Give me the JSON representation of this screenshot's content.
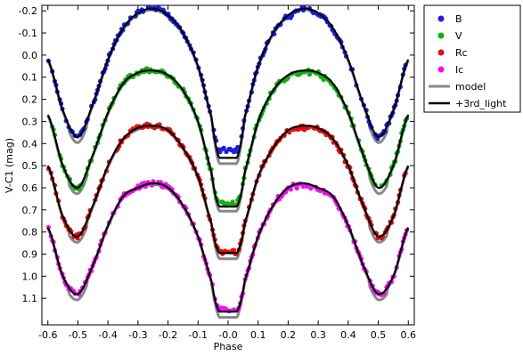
{
  "chart_data": {
    "type": "scatter",
    "title": "",
    "xlabel": "Phase",
    "ylabel": "V-C1 (mag)",
    "xlim": [
      -0.62,
      0.62
    ],
    "ylim": [
      1.22,
      -0.225
    ],
    "y_inverted": true,
    "grid": false,
    "legend_position": "outside-top-right",
    "x_ticks": [
      -0.6,
      -0.5,
      -0.4,
      -0.3,
      -0.2,
      -0.1,
      0.0,
      0.1,
      0.2,
      0.3,
      0.4,
      0.5,
      0.6
    ],
    "x_tick_labels": [
      "-0.6",
      "-0.5",
      "-0.4",
      "-0.3",
      "-0.2",
      "-0.1",
      "-0.0",
      "0.1",
      "0.2",
      "0.3",
      "0.4",
      "0.5",
      "0.6"
    ],
    "y_ticks": [
      -0.2,
      -0.1,
      0.0,
      0.1,
      0.2,
      0.3,
      0.4,
      0.5,
      0.6,
      0.7,
      0.8,
      0.9,
      1.0,
      1.1
    ],
    "y_tick_labels": [
      "-0.2",
      "-0.1",
      "0.0",
      "0.1",
      "0.2",
      "0.3",
      "0.4",
      "0.5",
      "0.6",
      "0.7",
      "0.8",
      "0.9",
      "1.0",
      "1.1"
    ],
    "light_curve_shape": {
      "phases": [
        -0.6,
        -0.55,
        -0.5,
        -0.45,
        -0.4,
        -0.35,
        -0.3,
        -0.25,
        -0.2,
        -0.15,
        -0.1,
        -0.05,
        0.0,
        0.05,
        0.1,
        0.15,
        0.2,
        0.25,
        0.3,
        0.35,
        0.4,
        0.45,
        0.5,
        0.55,
        0.6
      ],
      "B": [
        0.02,
        0.25,
        0.37,
        0.22,
        0.02,
        -0.12,
        -0.19,
        -0.21,
        -0.18,
        -0.1,
        0.05,
        0.3,
        0.43,
        0.3,
        0.05,
        -0.1,
        -0.18,
        -0.21,
        -0.19,
        -0.12,
        0.02,
        0.22,
        0.37,
        0.25,
        0.02
      ],
      "V": [
        0.27,
        0.5,
        0.6,
        0.45,
        0.26,
        0.13,
        0.08,
        0.07,
        0.09,
        0.16,
        0.3,
        0.55,
        0.67,
        0.55,
        0.3,
        0.16,
        0.09,
        0.07,
        0.08,
        0.13,
        0.26,
        0.45,
        0.6,
        0.5,
        0.27
      ],
      "Rc": [
        0.5,
        0.73,
        0.82,
        0.68,
        0.5,
        0.38,
        0.33,
        0.32,
        0.34,
        0.42,
        0.55,
        0.78,
        0.89,
        0.78,
        0.55,
        0.42,
        0.34,
        0.32,
        0.33,
        0.38,
        0.5,
        0.68,
        0.82,
        0.73,
        0.5
      ],
      "Ic": [
        0.78,
        1.0,
        1.08,
        0.95,
        0.77,
        0.64,
        0.6,
        0.58,
        0.6,
        0.68,
        0.82,
        1.04,
        1.15,
        1.04,
        0.82,
        0.68,
        0.6,
        0.58,
        0.6,
        0.64,
        0.77,
        0.95,
        1.08,
        1.0,
        0.78
      ]
    },
    "series": [
      {
        "name": "B",
        "color": "#1f1fe0",
        "kind": "points",
        "band": "B"
      },
      {
        "name": "V",
        "color": "#10b010",
        "kind": "points",
        "band": "V"
      },
      {
        "name": "Rc",
        "color": "#e01010",
        "kind": "points",
        "band": "Rc"
      },
      {
        "name": "Ic",
        "color": "#ee10ee",
        "kind": "points",
        "band": "Ic"
      },
      {
        "name": "model",
        "color": "#888888",
        "kind": "line"
      },
      {
        "name": "+3rd_light",
        "color": "#000000",
        "kind": "line"
      }
    ],
    "primary_minimum_depth": {
      "B": {
        "observed": 0.43,
        "model": 0.485,
        "third_light": 0.465
      },
      "V": {
        "observed": 0.67,
        "model": 0.7,
        "third_light": 0.685
      },
      "Rc": {
        "observed": 0.89,
        "model": 0.915,
        "third_light": 0.895
      },
      "Ic": {
        "observed": 1.15,
        "model": 1.18,
        "third_light": 1.16
      }
    }
  }
}
